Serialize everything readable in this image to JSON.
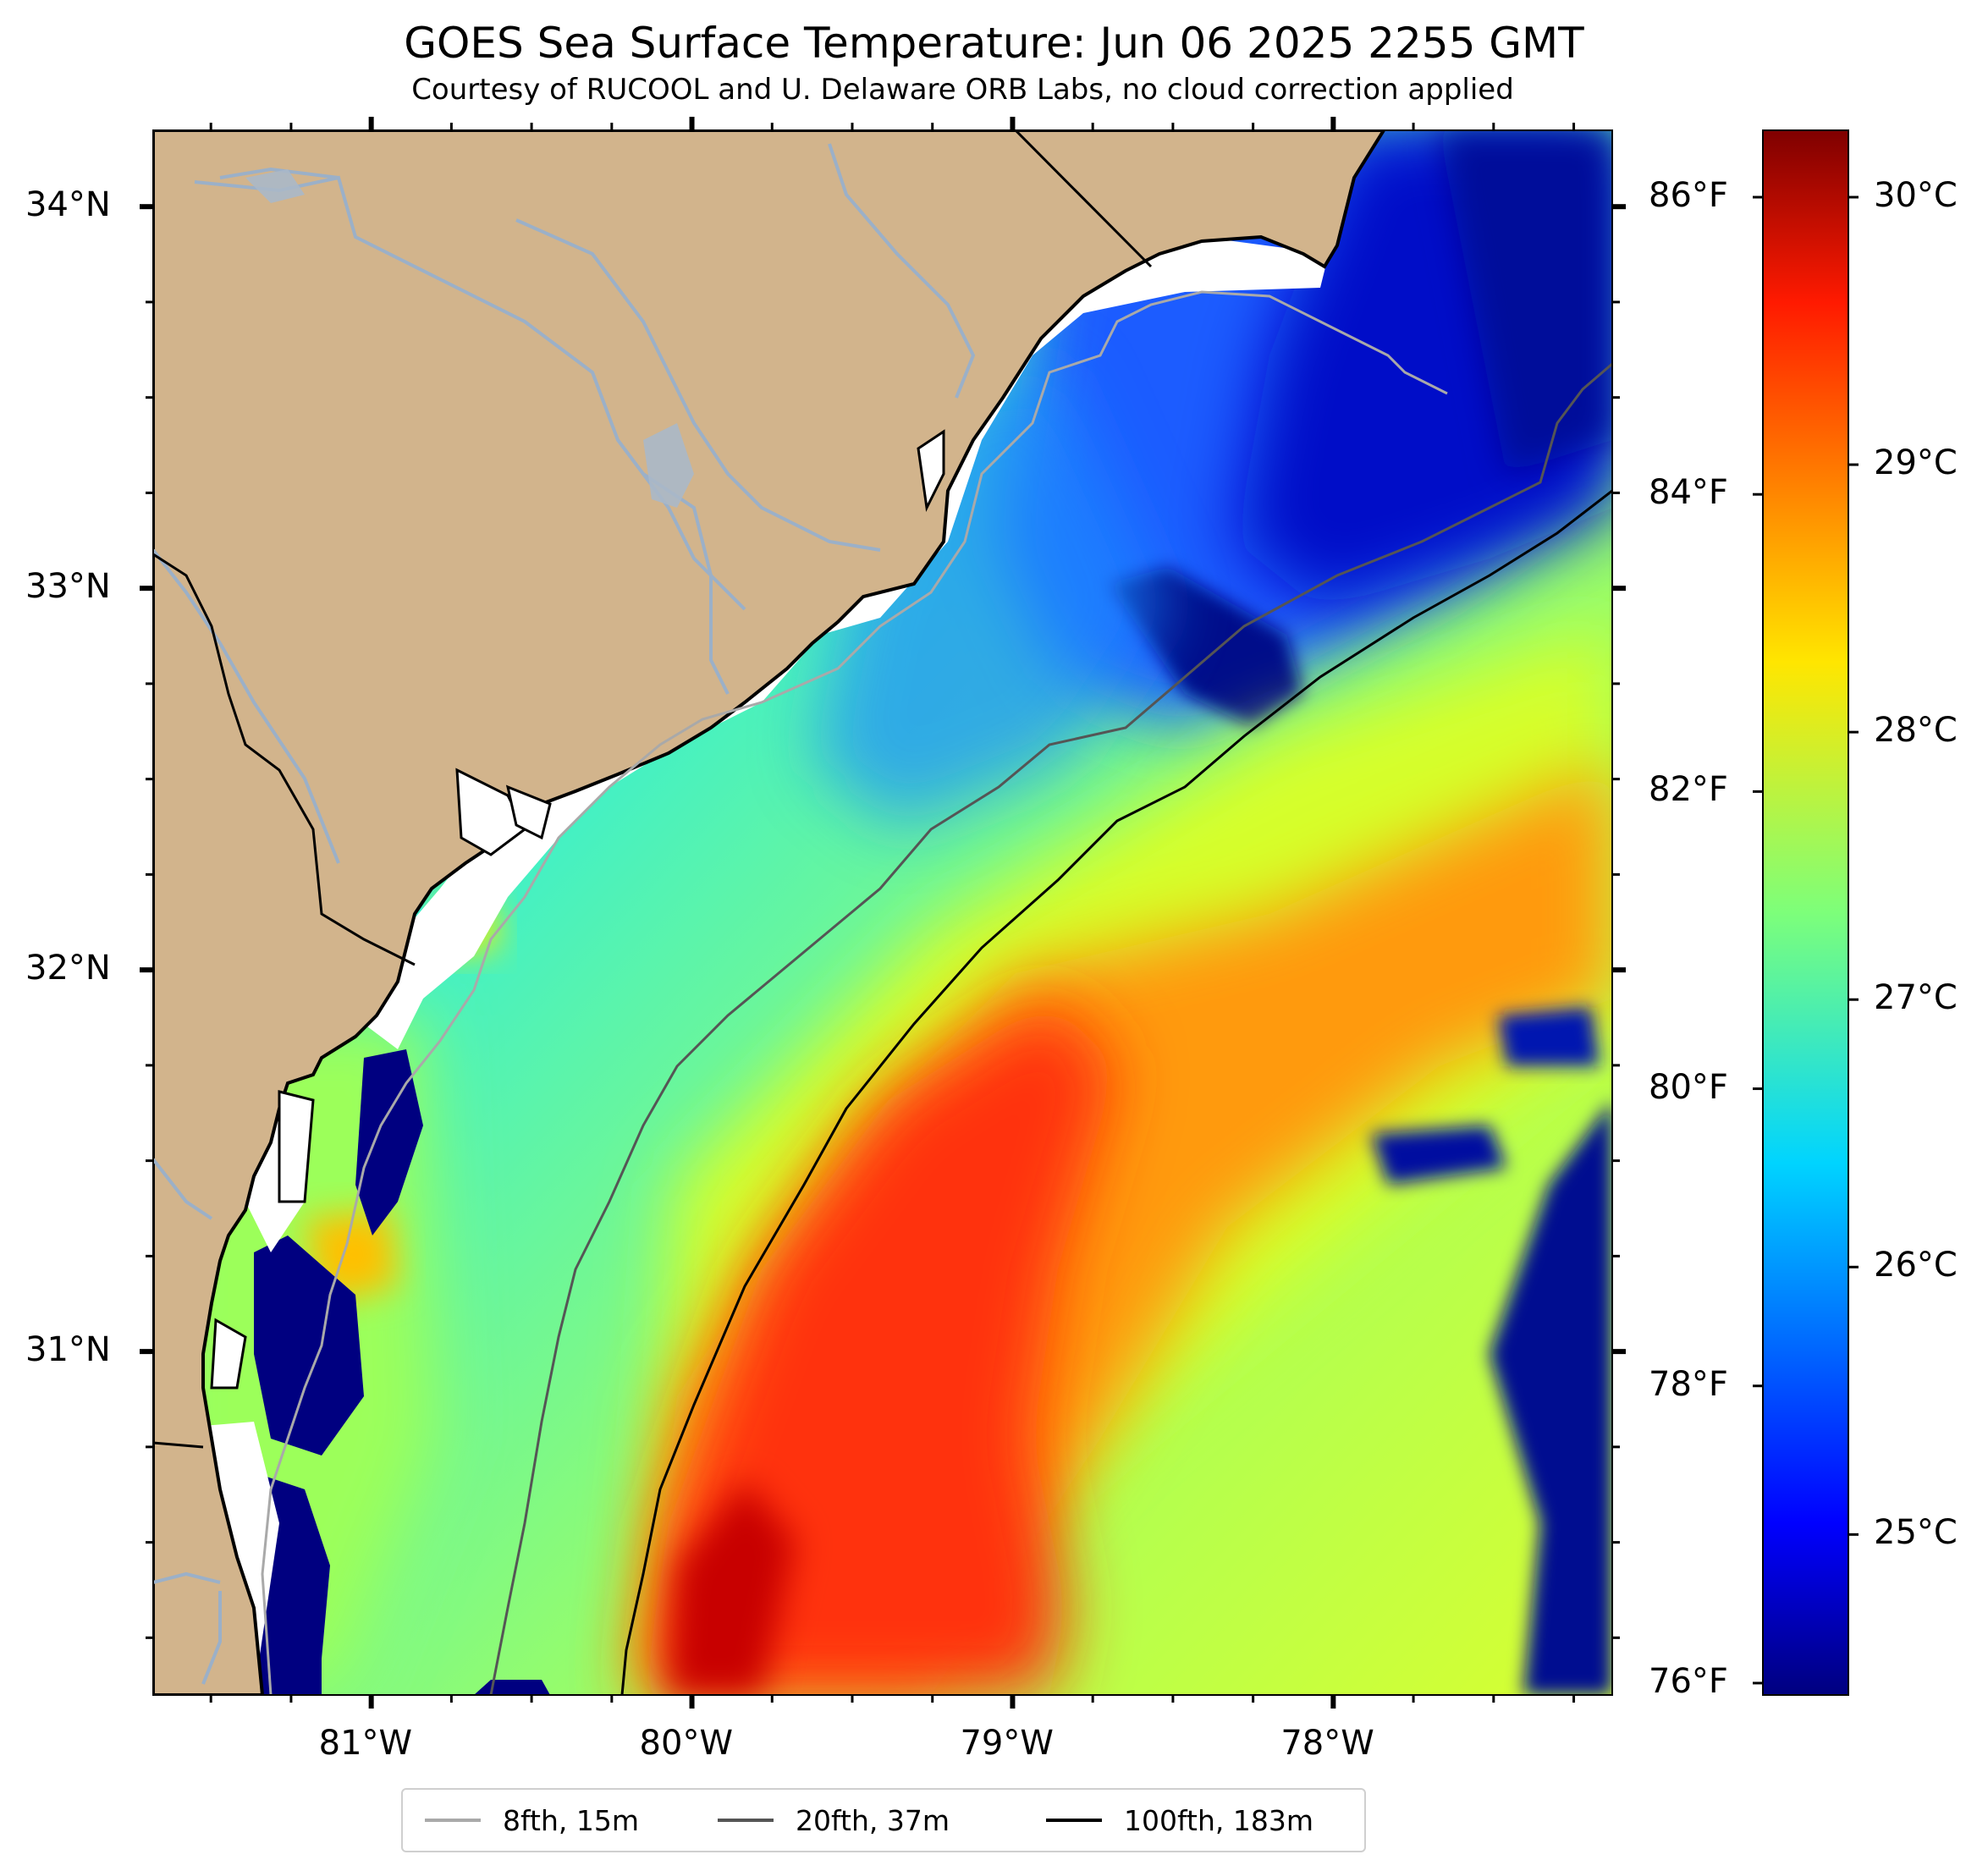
{
  "title": "GOES Sea Surface Temperature: Jun 06 2025 2255 GMT",
  "subtitle": "Courtesy of RUCOOL and U. Delaware ORB Labs, no cloud correction applied",
  "map": {
    "lon_range": [
      -81.68,
      -77.13
    ],
    "lat_range": [
      30.1,
      34.2
    ],
    "lon_labels": [
      "81°W",
      "80°W",
      "79°W",
      "78°W"
    ],
    "lat_labels": [
      "34°N",
      "33°N",
      "32°N",
      "31°N"
    ],
    "land_color": "#d2b48c",
    "ocean_nodata_color": "#ffffff",
    "river_color": "#9bb0c8"
  },
  "colorbar": {
    "colormap": "jet",
    "celsius_range": [
      24.4,
      30.25
    ],
    "celsius_labels": [
      "30°C",
      "29°C",
      "28°C",
      "27°C",
      "26°C",
      "25°C"
    ],
    "fahrenheit_labels": [
      "86°F",
      "84°F",
      "82°F",
      "80°F",
      "78°F",
      "76°F"
    ]
  },
  "legend": {
    "items": [
      {
        "label": "8fth, 15m",
        "color": "#a9a9a9"
      },
      {
        "label": "20fth, 37m",
        "color": "#555555"
      },
      {
        "label": "100fth, 183m",
        "color": "#000000"
      }
    ]
  }
}
